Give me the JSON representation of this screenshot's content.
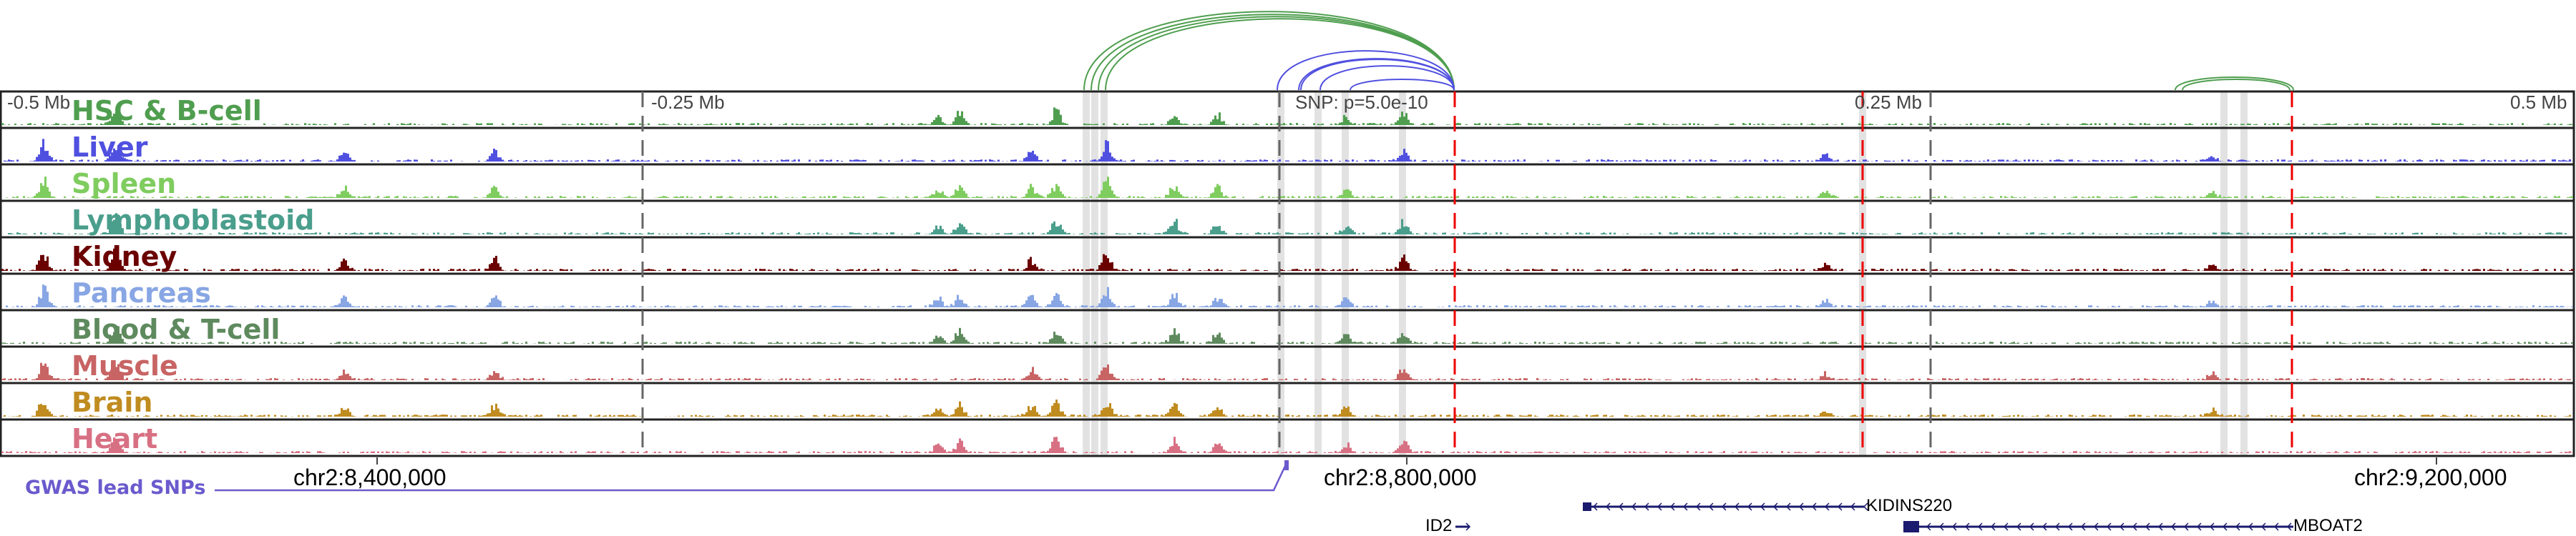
{
  "tracks": [
    {
      "name": "HSC & B-cell",
      "color": "#4f9e4f"
    },
    {
      "name": "Liver",
      "color": "#5050e0"
    },
    {
      "name": "Spleen",
      "color": "#7fcc5f"
    },
    {
      "name": "Lymphoblastoid",
      "color": "#4a9e8c"
    },
    {
      "name": "Kidney",
      "color": "#6b0000"
    },
    {
      "name": "Pancreas",
      "color": "#88a6e4"
    },
    {
      "name": "Blood & T-cell",
      "color": "#5e8a5e"
    },
    {
      "name": "Muscle",
      "color": "#c86464"
    },
    {
      "name": "Brain",
      "color": "#c08c20"
    },
    {
      "name": "Heart",
      "color": "#d87083"
    }
  ],
  "axis": {
    "left": "-0.5 Mb",
    "left_mid": "-0.25 Mb",
    "snp": "SNP: p=5.0e-10",
    "right_mid": "0.25 Mb",
    "right": "0.5 Mb"
  },
  "coords": [
    "chr2:8,400,000",
    "chr2:8,800,000",
    "chr2:9,200,000"
  ],
  "gwas_label": "GWAS lead SNPs",
  "gwas_color": "#6a5acd",
  "genes": [
    {
      "name": "KIDINS220",
      "strand": "-"
    },
    {
      "name": "ID2",
      "strand": "+"
    },
    {
      "name": "MBOAT2",
      "strand": "-"
    }
  ]
}
